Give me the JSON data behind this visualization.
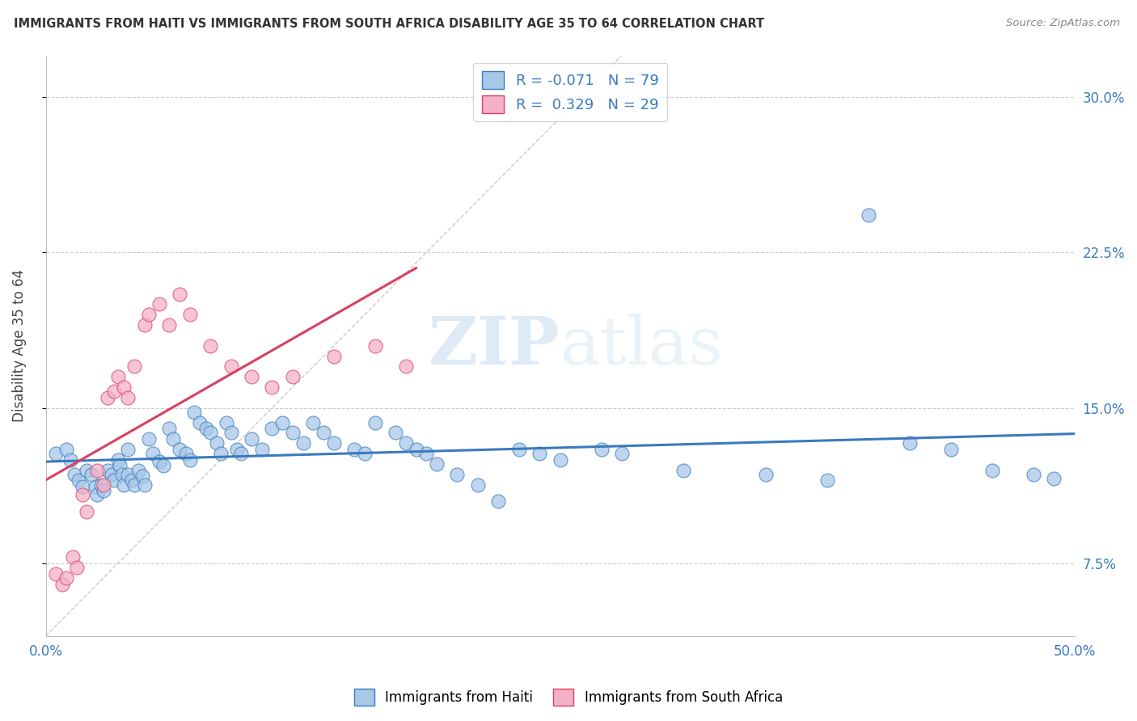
{
  "title": "IMMIGRANTS FROM HAITI VS IMMIGRANTS FROM SOUTH AFRICA DISABILITY AGE 35 TO 64 CORRELATION CHART",
  "source": "Source: ZipAtlas.com",
  "ylabel": "Disability Age 35 to 64",
  "xlim": [
    0.0,
    0.5
  ],
  "ylim": [
    0.04,
    0.32
  ],
  "xticks": [
    0.0,
    0.1,
    0.2,
    0.3,
    0.4,
    0.5
  ],
  "xticklabels": [
    "0.0%",
    "",
    "",
    "",
    "",
    "50.0%"
  ],
  "yticks_right": [
    0.075,
    0.15,
    0.225,
    0.3
  ],
  "ytick_labels_right": [
    "7.5%",
    "15.0%",
    "22.5%",
    "30.0%"
  ],
  "R_haiti": -0.071,
  "N_haiti": 79,
  "R_sa": 0.329,
  "N_sa": 29,
  "color_haiti": "#a8c8e8",
  "color_sa": "#f4b0c8",
  "line_color_haiti": "#3a7abf",
  "line_color_sa": "#d94060",
  "watermark_zip": "ZIP",
  "watermark_atlas": "atlas",
  "haiti_x": [
    0.005,
    0.01,
    0.012,
    0.014,
    0.016,
    0.018,
    0.02,
    0.022,
    0.024,
    0.025,
    0.027,
    0.028,
    0.03,
    0.032,
    0.033,
    0.035,
    0.036,
    0.037,
    0.038,
    0.04,
    0.04,
    0.042,
    0.043,
    0.045,
    0.047,
    0.048,
    0.05,
    0.052,
    0.055,
    0.057,
    0.06,
    0.062,
    0.065,
    0.068,
    0.07,
    0.072,
    0.075,
    0.078,
    0.08,
    0.083,
    0.085,
    0.088,
    0.09,
    0.093,
    0.095,
    0.1,
    0.105,
    0.11,
    0.115,
    0.12,
    0.125,
    0.13,
    0.135,
    0.14,
    0.15,
    0.155,
    0.16,
    0.17,
    0.175,
    0.18,
    0.185,
    0.19,
    0.2,
    0.21,
    0.22,
    0.23,
    0.24,
    0.25,
    0.27,
    0.28,
    0.31,
    0.35,
    0.38,
    0.4,
    0.42,
    0.44,
    0.46,
    0.48,
    0.49
  ],
  "haiti_y": [
    0.128,
    0.13,
    0.125,
    0.118,
    0.115,
    0.112,
    0.12,
    0.118,
    0.112,
    0.108,
    0.113,
    0.11,
    0.12,
    0.118,
    0.115,
    0.125,
    0.122,
    0.118,
    0.113,
    0.13,
    0.118,
    0.115,
    0.113,
    0.12,
    0.117,
    0.113,
    0.135,
    0.128,
    0.124,
    0.122,
    0.14,
    0.135,
    0.13,
    0.128,
    0.125,
    0.148,
    0.143,
    0.14,
    0.138,
    0.133,
    0.128,
    0.143,
    0.138,
    0.13,
    0.128,
    0.135,
    0.13,
    0.14,
    0.143,
    0.138,
    0.133,
    0.143,
    0.138,
    0.133,
    0.13,
    0.128,
    0.143,
    0.138,
    0.133,
    0.13,
    0.128,
    0.123,
    0.118,
    0.113,
    0.105,
    0.13,
    0.128,
    0.125,
    0.13,
    0.128,
    0.12,
    0.118,
    0.115,
    0.243,
    0.133,
    0.13,
    0.12,
    0.118,
    0.116
  ],
  "sa_x": [
    0.005,
    0.008,
    0.01,
    0.013,
    0.015,
    0.018,
    0.02,
    0.025,
    0.028,
    0.03,
    0.033,
    0.035,
    0.038,
    0.04,
    0.043,
    0.048,
    0.05,
    0.055,
    0.06,
    0.065,
    0.07,
    0.08,
    0.09,
    0.1,
    0.11,
    0.12,
    0.14,
    0.16,
    0.175
  ],
  "sa_y": [
    0.07,
    0.065,
    0.068,
    0.078,
    0.073,
    0.108,
    0.1,
    0.12,
    0.113,
    0.155,
    0.158,
    0.165,
    0.16,
    0.155,
    0.17,
    0.19,
    0.195,
    0.2,
    0.19,
    0.205,
    0.195,
    0.18,
    0.17,
    0.165,
    0.16,
    0.165,
    0.175,
    0.18,
    0.17
  ]
}
